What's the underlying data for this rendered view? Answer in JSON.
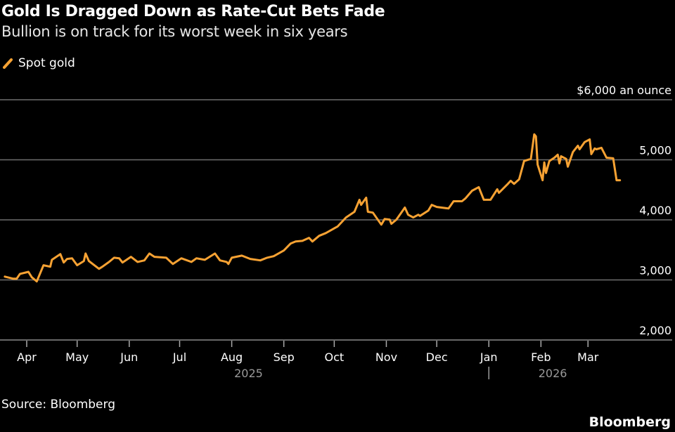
{
  "title": "Gold Is Dragged Down as Rate-Cut Bets Fade",
  "subtitle": "Bullion is on track for its worst week in six years",
  "source": "Source: Bloomberg",
  "brand": "Bloomberg",
  "chart_data": {
    "type": "line",
    "title": "Gold Is Dragged Down as Rate-Cut Bets Fade",
    "subtitle": "Bullion is on track for its worst week in six years",
    "legend": "top-left",
    "grid": true,
    "color": "#f7a233",
    "ylim": [
      2000,
      6000
    ],
    "y_ticks": [
      {
        "value": 2000,
        "label": "2,000"
      },
      {
        "value": 3000,
        "label": "3,000"
      },
      {
        "value": 4000,
        "label": "4,000"
      },
      {
        "value": 5000,
        "label": "5,000"
      },
      {
        "value": 6000,
        "label": "$6,000 an ounce"
      }
    ],
    "x_ticks": [
      {
        "date": "2025-04-01",
        "label": "Apr"
      },
      {
        "date": "2025-05-01",
        "label": "May"
      },
      {
        "date": "2025-06-01",
        "label": "Jun"
      },
      {
        "date": "2025-07-01",
        "label": "Jul"
      },
      {
        "date": "2025-08-01",
        "label": "Aug"
      },
      {
        "date": "2025-09-01",
        "label": "Sep"
      },
      {
        "date": "2025-10-01",
        "label": "Oct"
      },
      {
        "date": "2025-11-01",
        "label": "Nov"
      },
      {
        "date": "2025-12-01",
        "label": "Dec"
      },
      {
        "date": "2026-01-01",
        "label": "Jan"
      },
      {
        "date": "2026-02-01",
        "label": "Feb"
      },
      {
        "date": "2026-03-01",
        "label": "Mar"
      }
    ],
    "years": [
      {
        "label": "2025",
        "center_date": "2025-08-11"
      },
      {
        "label": "2026",
        "center_date": "2026-02-08"
      }
    ],
    "series": [
      {
        "name": "Spot gold",
        "x": [
          "2025-03-19",
          "2025-03-24",
          "2025-03-26",
          "2025-03-28",
          "2025-04-02",
          "2025-04-04",
          "2025-04-07",
          "2025-04-11",
          "2025-04-15",
          "2025-04-16",
          "2025-04-21",
          "2025-04-23",
          "2025-04-25",
          "2025-04-28",
          "2025-05-01",
          "2025-05-05",
          "2025-05-06",
          "2025-05-08",
          "2025-05-14",
          "2025-05-16",
          "2025-05-20",
          "2025-05-23",
          "2025-05-26",
          "2025-05-28",
          "2025-06-02",
          "2025-06-06",
          "2025-06-10",
          "2025-06-13",
          "2025-06-16",
          "2025-06-23",
          "2025-06-27",
          "2025-07-02",
          "2025-07-08",
          "2025-07-11",
          "2025-07-16",
          "2025-07-22",
          "2025-07-25",
          "2025-07-29",
          "2025-07-30",
          "2025-08-01",
          "2025-08-07",
          "2025-08-12",
          "2025-08-18",
          "2025-08-22",
          "2025-08-26",
          "2025-09-01",
          "2025-09-05",
          "2025-09-08",
          "2025-09-12",
          "2025-09-16",
          "2025-09-18",
          "2025-09-22",
          "2025-09-26",
          "2025-10-02",
          "2025-10-03",
          "2025-10-08",
          "2025-10-13",
          "2025-10-16",
          "2025-10-17",
          "2025-10-20",
          "2025-10-21",
          "2025-10-24",
          "2025-10-29",
          "2025-10-31",
          "2025-11-03",
          "2025-11-04",
          "2025-11-07",
          "2025-11-12",
          "2025-11-14",
          "2025-11-17",
          "2025-11-20",
          "2025-11-21",
          "2025-11-26",
          "2025-11-28",
          "2025-12-01",
          "2025-12-08",
          "2025-12-11",
          "2025-12-16",
          "2025-12-18",
          "2025-12-22",
          "2025-12-26",
          "2025-12-29",
          "2026-01-02",
          "2026-01-06",
          "2026-01-07",
          "2026-01-12",
          "2026-01-14",
          "2026-01-16",
          "2026-01-19",
          "2026-01-22",
          "2026-01-26",
          "2026-01-28",
          "2026-01-29",
          "2026-01-30",
          "2026-02-02",
          "2026-02-03",
          "2026-02-04",
          "2026-02-06",
          "2026-02-09",
          "2026-02-11",
          "2026-02-12",
          "2026-02-13",
          "2026-02-16",
          "2026-02-17",
          "2026-02-20",
          "2026-02-23",
          "2026-02-24",
          "2026-02-27",
          "2026-03-02",
          "2026-03-03",
          "2026-03-05",
          "2026-03-06",
          "2026-03-09",
          "2026-03-12",
          "2026-03-16",
          "2026-03-18",
          "2026-03-20"
        ],
        "values": [
          3055,
          3020,
          3020,
          3100,
          3135,
          3045,
          2975,
          3245,
          3220,
          3335,
          3430,
          3290,
          3350,
          3360,
          3245,
          3315,
          3440,
          3315,
          3185,
          3220,
          3300,
          3370,
          3360,
          3290,
          3385,
          3300,
          3325,
          3440,
          3385,
          3370,
          3265,
          3360,
          3300,
          3360,
          3335,
          3440,
          3325,
          3300,
          3265,
          3370,
          3405,
          3350,
          3325,
          3370,
          3395,
          3490,
          3605,
          3640,
          3650,
          3700,
          3640,
          3735,
          3780,
          3875,
          3890,
          4040,
          4135,
          4335,
          4250,
          4370,
          4135,
          4120,
          3920,
          4015,
          4005,
          3935,
          4005,
          4205,
          4085,
          4040,
          4085,
          4065,
          4155,
          4250,
          4215,
          4190,
          4310,
          4310,
          4355,
          4485,
          4545,
          4335,
          4335,
          4510,
          4450,
          4590,
          4650,
          4600,
          4675,
          4980,
          5015,
          5425,
          5390,
          4920,
          4660,
          4955,
          4780,
          4980,
          5035,
          5085,
          4940,
          5060,
          5015,
          4885,
          5130,
          5235,
          5175,
          5295,
          5340,
          5095,
          5190,
          5175,
          5200,
          5035,
          5025,
          4660,
          4660
        ]
      }
    ]
  }
}
